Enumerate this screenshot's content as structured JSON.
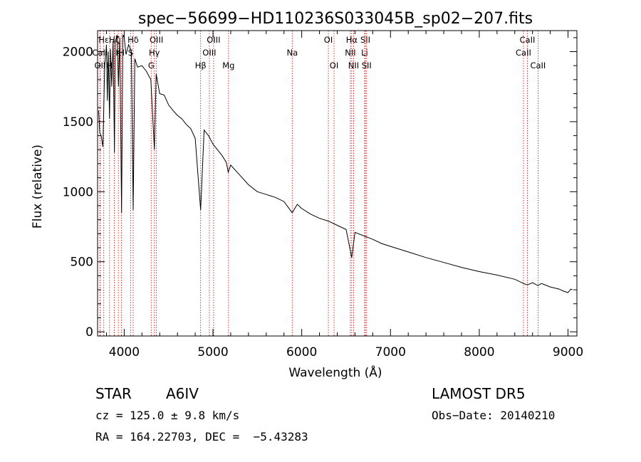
{
  "chart_data": {
    "type": "line",
    "title": "spec−56699−HD110236S033045B_sp02−207.fits",
    "xlabel": "Wavelength (Å)",
    "ylabel": "Flux (relative)",
    "xlim": [
      3700,
      9100
    ],
    "ylim": [
      -30,
      2150
    ],
    "xticks": [
      4000,
      5000,
      6000,
      7000,
      8000,
      9000
    ],
    "yticks": [
      0,
      500,
      1000,
      1500,
      2000
    ],
    "grid": false,
    "series": [
      {
        "x": [
          3712,
          3725,
          3740,
          3760,
          3780,
          3800,
          3810,
          3820,
          3835,
          3845,
          3860,
          3875,
          3890,
          3900,
          3920,
          3935,
          3950,
          3970,
          3985,
          4000,
          4020,
          4050,
          4080,
          4101,
          4120,
          4150,
          4200,
          4250,
          4300,
          4340,
          4360,
          4400,
          4450,
          4500,
          4550,
          4600,
          4650,
          4700,
          4750,
          4800,
          4861,
          4900,
          4950,
          5000,
          5050,
          5100,
          5150,
          5172,
          5200,
          5300,
          5400,
          5500,
          5600,
          5700,
          5800,
          5893,
          5950,
          6000,
          6100,
          6200,
          6300,
          6400,
          6500,
          6563,
          6600,
          6700,
          6800,
          6900,
          7000,
          7200,
          7400,
          7600,
          7800,
          8000,
          8200,
          8400,
          8498,
          8542,
          8600,
          8662,
          8700,
          8800,
          8900,
          8950,
          9000,
          9030,
          9050
        ],
        "y": [
          1580,
          1420,
          1400,
          1320,
          1900,
          2050,
          1650,
          2000,
          1520,
          2020,
          1750,
          2080,
          1280,
          2070,
          2120,
          1750,
          2100,
          850,
          2120,
          2100,
          1980,
          2050,
          2000,
          870,
          1950,
          1890,
          1900,
          1860,
          1800,
          1300,
          1840,
          1700,
          1690,
          1620,
          1580,
          1545,
          1520,
          1480,
          1450,
          1380,
          870,
          1440,
          1400,
          1340,
          1300,
          1260,
          1210,
          1140,
          1190,
          1120,
          1050,
          1000,
          980,
          960,
          930,
          850,
          910,
          880,
          840,
          810,
          790,
          760,
          730,
          530,
          710,
          685,
          660,
          630,
          610,
          570,
          530,
          495,
          460,
          430,
          405,
          375,
          345,
          335,
          350,
          330,
          345,
          320,
          305,
          290,
          280,
          305,
          300
        ]
      }
    ],
    "spectral_lines": [
      {
        "label": "Hε",
        "x": 3770,
        "row": 0
      },
      {
        "label": "Hζ",
        "x": 3889,
        "row": 0
      },
      {
        "label": "Hδ",
        "x": 4101,
        "row": 0
      },
      {
        "label": "OIII",
        "x": 4363,
        "row": 0
      },
      {
        "label": "OIII",
        "x": 5007,
        "row": 0
      },
      {
        "label": "OI",
        "x": 6300,
        "row": 0
      },
      {
        "label": "Hα",
        "x": 6563,
        "row": 0
      },
      {
        "label": "SII",
        "x": 6717,
        "row": 0
      },
      {
        "label": "CaII",
        "x": 8542,
        "row": 0
      },
      {
        "label": "CaII",
        "x": 3727,
        "row": 1
      },
      {
        "label": "K",
        "x": 3934,
        "row": 1
      },
      {
        "label": "H",
        "x": 3969,
        "row": 1
      },
      {
        "label": "S",
        "x": 4072,
        "row": 1
      },
      {
        "label": "Hγ",
        "x": 4340,
        "row": 1
      },
      {
        "label": "OIII",
        "x": 4959,
        "row": 1
      },
      {
        "label": "Na",
        "x": 5893,
        "row": 1
      },
      {
        "label": "NII",
        "x": 6548,
        "row": 1
      },
      {
        "label": "Li",
        "x": 6708,
        "row": 1
      },
      {
        "label": "CaII",
        "x": 8498,
        "row": 1
      },
      {
        "label": "OII",
        "x": 3727,
        "row": 2
      },
      {
        "label": "H",
        "x": 3835,
        "row": 2
      },
      {
        "label": "G",
        "x": 4304,
        "row": 2
      },
      {
        "label": "Hβ",
        "x": 4861,
        "row": 2
      },
      {
        "label": "Mg",
        "x": 5175,
        "row": 2
      },
      {
        "label": "OI",
        "x": 6364,
        "row": 2
      },
      {
        "label": "NII",
        "x": 6584,
        "row": 2
      },
      {
        "label": "SII",
        "x": 6731,
        "row": 2
      },
      {
        "label": "CaII",
        "x": 8662,
        "row": 2
      }
    ],
    "line_color": "#000000",
    "marker_color": "#cc0000"
  },
  "info": {
    "object_class": "STAR",
    "subclass": "A6IV",
    "survey": "LAMOST DR5",
    "cz": "cz = 125.0 ± 9.8 km/s",
    "obs_date": "Obs−Date: 20140210",
    "coords": "RA = 164.22703, DEC =  −5.43283"
  }
}
